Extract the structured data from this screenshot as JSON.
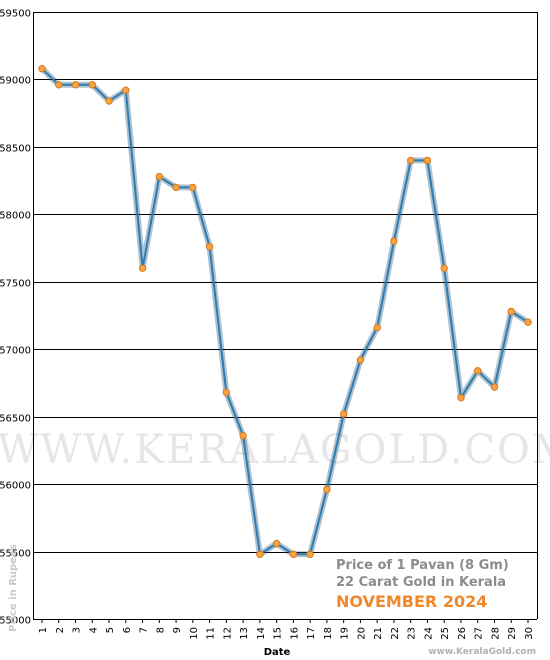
{
  "chart_data": {
    "type": "line",
    "x": [
      "1",
      "2",
      "3",
      "4",
      "5",
      "6",
      "7",
      "8",
      "9",
      "10",
      "11",
      "12",
      "13",
      "14",
      "15",
      "16",
      "17",
      "18",
      "19",
      "20",
      "21",
      "22",
      "23",
      "24",
      "25",
      "26",
      "27",
      "28",
      "29",
      "30"
    ],
    "values": [
      59080,
      58960,
      58960,
      58960,
      58840,
      58920,
      57600,
      58280,
      58200,
      58200,
      57760,
      56680,
      56360,
      55480,
      55560,
      55480,
      55480,
      55960,
      56520,
      56920,
      57160,
      57800,
      58400,
      58400,
      57600,
      56640,
      56840,
      56720,
      57280,
      57200
    ],
    "ylim": [
      55000,
      59500
    ],
    "yticks": [
      55000,
      55500,
      56000,
      56500,
      57000,
      57500,
      58000,
      58500,
      59000,
      59500
    ],
    "xlabel": "Date",
    "ylabel": "Price in Rupees",
    "grid": "horizontal",
    "colors": {
      "line": "#2b7cb0",
      "marker": "#f6a542",
      "marker_edge": "#d9771c",
      "grid": "#000000"
    }
  },
  "info": {
    "line1": "Price of 1 Pavan (8 Gm)",
    "line2": "22 Carat Gold in Kerala",
    "line3": "NOVEMBER 2024"
  },
  "watermark": "WWW.KERALAGOLD.COM",
  "footer": "www.KeralaGold.com"
}
